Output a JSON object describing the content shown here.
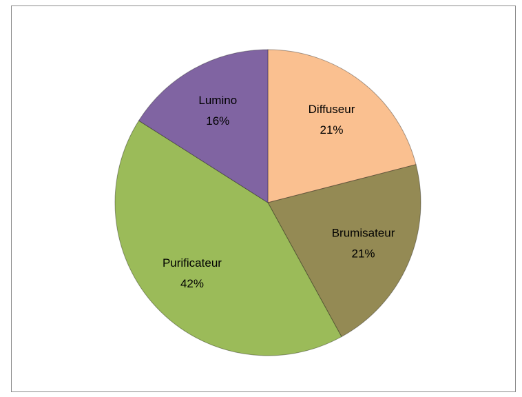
{
  "chart_data": {
    "type": "pie",
    "categories": [
      "Diffuseur",
      "Brumisateur",
      "Purificateur",
      "Lumino"
    ],
    "values": [
      21,
      21,
      42,
      16
    ],
    "value_labels": [
      "21%",
      "21%",
      "42%",
      "16%"
    ],
    "colors": [
      "#fac090",
      "#948a54",
      "#9bbb59",
      "#8064a2"
    ]
  }
}
